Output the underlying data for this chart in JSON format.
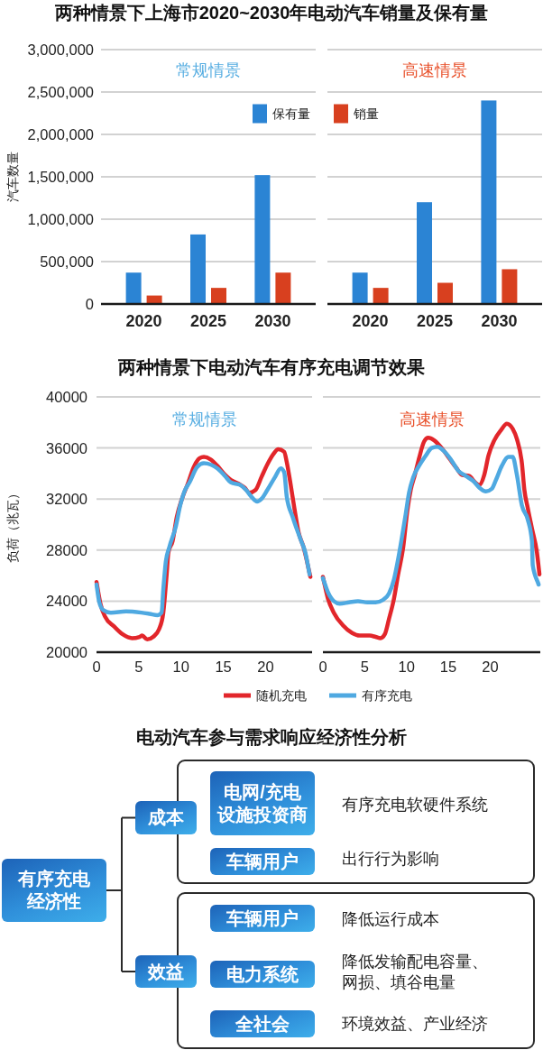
{
  "chart_data": [
    {
      "type": "bar",
      "title": "两种情景下上海市2020~2030年电动汽车销量及保有量",
      "subtitle": "常规情景",
      "ylabel": "汽车数量",
      "categories": [
        "2020",
        "2025",
        "2030"
      ],
      "series": [
        {
          "name": "保有量",
          "color": "#2b84d4",
          "values": [
            370000,
            820000,
            1520000
          ]
        },
        {
          "color": "#d8401f",
          "values": [
            100000,
            190000,
            370000
          ]
        }
      ],
      "ylim": [
        0,
        3000000
      ],
      "yticks": [
        0,
        {
          "value": 500000,
          "label": "500,000"
        },
        {
          "value": 1000000,
          "label": "1,000,000"
        },
        {
          "value": 1500000,
          "label": "1,500,000"
        },
        {
          "value": 2000000,
          "label": "2,000,000"
        },
        {
          "value": 2500000,
          "label": "2,500,000"
        },
        {
          "value": 3000000,
          "label": "3,000,000"
        }
      ],
      "grid": "y",
      "legend": "top right"
    },
    {
      "type": "bar",
      "subtitle": "高速情景",
      "categories": [
        "2020",
        "2025",
        "2030"
      ],
      "series": [
        {
          "color": "#2b84d4",
          "values": [
            370000,
            1200000,
            2400000
          ]
        },
        {
          "name": "销量",
          "color": "#d8401f",
          "values": [
            190000,
            250000,
            410000
          ]
        }
      ],
      "ylim": [
        0,
        3000000
      ],
      "yticks": [
        0,
        500000,
        1000000,
        1500000,
        2000000,
        2500000,
        3000000
      ],
      "grid": "y",
      "legend": "top left",
      "tick_labels": "x"
    },
    {
      "type": "line",
      "title": "两种情景下电动汽车有序充电调节效果",
      "subtitle": "常规情景",
      "ylabel": "负荷（兆瓦）",
      "series": [
        {
          "name": "随机充电",
          "color": "#e2262b",
          "x": [
            0,
            0.5,
            1,
            2.1,
            3.1,
            4.2,
            5.1,
            5.4,
            6,
            6.7,
            7.4,
            7.9,
            8.3,
            8.5,
            9,
            9.5,
            10.1,
            10.8,
            11.5,
            12.2,
            12.7,
            13.5,
            14.3,
            15.2,
            15.9,
            16.8,
            17.5,
            18.1,
            18.8,
            19.5,
            20.2,
            20.9,
            21.5,
            22.2,
            22.5,
            22.9,
            23.4,
            23.9,
            24.5,
            25.3
          ],
          "values": [
            25500,
            23700,
            22800,
            22000,
            21400,
            21100,
            21200,
            21300,
            21000,
            21200,
            21800,
            23100,
            26100,
            27800,
            28700,
            30600,
            32000,
            33200,
            34500,
            35200,
            35300,
            35100,
            34600,
            33900,
            33500,
            33200,
            32900,
            32500,
            32700,
            33700,
            34700,
            35500,
            35900,
            35700,
            34900,
            33400,
            31300,
            29400,
            28200,
            25900
          ]
        },
        {
          "color": "#4fa9e1",
          "x": [
            0,
            0.3,
            0.8,
            1.7,
            3.5,
            5.3,
            6.3,
            7.2,
            7.7,
            7.9,
            8.2,
            8.6,
            9.4,
            9.9,
            10.4,
            11,
            11.9,
            12.7,
            13.5,
            14.3,
            15.2,
            15.9,
            17,
            17.7,
            18.3,
            19,
            19.5,
            20.2,
            21.1,
            21.8,
            22.2,
            22.5,
            23.2,
            24.1,
            24.7,
            25.2
          ],
          "values": [
            25300,
            24000,
            23300,
            23100,
            23200,
            23100,
            23000,
            22900,
            23100,
            24900,
            27100,
            28200,
            29900,
            31500,
            32600,
            33300,
            34500,
            34800,
            34700,
            34400,
            33800,
            33300,
            33100,
            32700,
            32200,
            31800,
            32000,
            32700,
            33700,
            34400,
            34100,
            32200,
            30600,
            28900,
            27800,
            26100
          ]
        }
      ],
      "xlim": [
        0,
        25.5
      ],
      "xticks": [
        0,
        5,
        10,
        15,
        20
      ],
      "ylim": [
        20000,
        40000
      ],
      "yticks": [
        20000,
        24000,
        28000,
        32000,
        36000,
        40000
      ],
      "grid": "y",
      "legend": "bottom right"
    },
    {
      "type": "line",
      "subtitle": "高速情景",
      "series": [
        {
          "color": "#e2262b",
          "x": [
            0,
            0.6,
            1.3,
            2.4,
            3.5,
            4.4,
            5.6,
            6.3,
            6.9,
            7.4,
            7.9,
            8.5,
            9,
            9.6,
            10.1,
            10.5,
            11,
            11.5,
            12.1,
            12.6,
            13.3,
            14.2,
            15.1,
            16,
            16.6,
            17.5,
            18.2,
            18.7,
            19.3,
            19.8,
            20.5,
            21.3,
            22,
            22.7,
            23.2,
            23.8,
            24.1,
            24.5,
            25,
            25.6,
            25.9
          ],
          "values": [
            25900,
            24200,
            23100,
            22100,
            21500,
            21300,
            21300,
            21200,
            21100,
            21400,
            22600,
            24200,
            26100,
            28200,
            31100,
            32700,
            33900,
            35200,
            36500,
            36800,
            36600,
            36000,
            35200,
            34400,
            33900,
            33800,
            33300,
            33100,
            33900,
            35400,
            36600,
            37400,
            37900,
            37500,
            36700,
            34800,
            32700,
            31300,
            29700,
            27800,
            26100
          ]
        },
        {
          "name": "有序充电",
          "color": "#4fa9e1",
          "x": [
            0,
            0.6,
            1.3,
            2,
            3.1,
            4.2,
            5.3,
            6.3,
            7.2,
            7.9,
            8.5,
            9,
            9.5,
            9.9,
            10.3,
            10.8,
            11.5,
            12.3,
            13,
            13.7,
            14.4,
            15.3,
            16.2,
            17.1,
            18,
            18.7,
            19.5,
            20.2,
            20.7,
            21.4,
            22.2,
            22.7,
            23.2,
            23.8,
            24.5,
            25,
            25.1,
            25.8
          ],
          "values": [
            25800,
            24700,
            24000,
            23800,
            23900,
            24000,
            23900,
            23900,
            24100,
            24600,
            25700,
            27300,
            29200,
            30800,
            32500,
            33700,
            34600,
            35400,
            36000,
            36100,
            35800,
            35100,
            34200,
            33800,
            33400,
            32900,
            32600,
            32800,
            33500,
            34600,
            35300,
            35300,
            33900,
            31500,
            30400,
            28700,
            26800,
            25300
          ]
        }
      ],
      "xlim": [
        0,
        26
      ],
      "xticks": [
        0,
        5,
        10,
        15,
        20
      ],
      "ylim": [
        20000,
        40000
      ],
      "yticks": [
        20000,
        24000,
        28000,
        32000,
        36000,
        40000
      ],
      "grid": "y",
      "legend": "bottom left",
      "tick_labels": "x"
    },
    {
      "type": "other",
      "title": "电动汽车参与需求响应经济性分析",
      "annotations": [
        "有序充电经济性",
        "成本",
        "效益",
        "电网/充电设施投资商",
        "有序充电软硬件系统",
        "车辆用户",
        "出行行为影响",
        "车辆用户",
        "降低运行成本",
        "电力系统",
        "降低发输配电容量、网损、填谷电量",
        "全社会",
        "环境效益、产业经济"
      ]
    }
  ]
}
